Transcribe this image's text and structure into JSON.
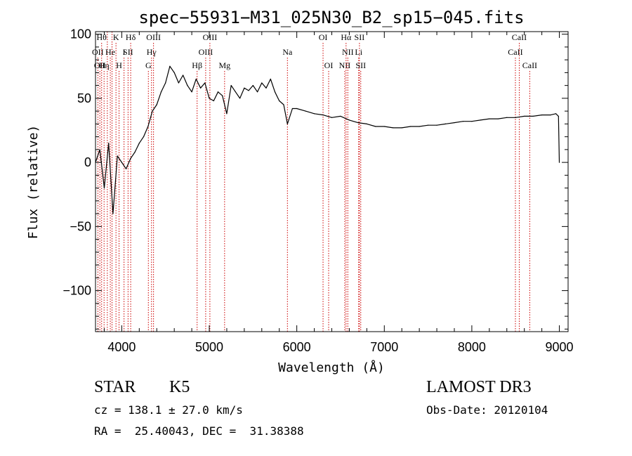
{
  "chart_data": {
    "type": "line",
    "title": "spec−55931−M31_025N30_B2_sp15−045.fits",
    "xlabel": "Wavelength (Å)",
    "ylabel": "Flux (relative)",
    "xlim": [
      3700,
      9100
    ],
    "ylim": [
      -132,
      102
    ],
    "xticks": [
      4000,
      5000,
      6000,
      7000,
      8000,
      9000
    ],
    "xtick_labels": [
      "4000",
      "5000",
      "6000",
      "7000",
      "8000",
      "9000"
    ],
    "yticks": [
      100,
      50,
      0,
      -50,
      -100
    ],
    "ytick_labels": [
      "100",
      "50",
      "0",
      "−50",
      "−100"
    ],
    "series": [
      {
        "name": "spectrum",
        "color": "#000000",
        "x": [
          3700,
          3750,
          3800,
          3850,
          3900,
          3950,
          4000,
          4050,
          4100,
          4150,
          4200,
          4250,
          4300,
          4350,
          4400,
          4450,
          4500,
          4550,
          4600,
          4650,
          4700,
          4750,
          4800,
          4850,
          4900,
          4950,
          5000,
          5050,
          5100,
          5150,
          5200,
          5250,
          5300,
          5350,
          5400,
          5450,
          5500,
          5550,
          5600,
          5650,
          5700,
          5750,
          5800,
          5850,
          5893,
          5950,
          6000,
          6100,
          6200,
          6300,
          6400,
          6500,
          6600,
          6700,
          6800,
          6900,
          7000,
          7100,
          7200,
          7300,
          7400,
          7500,
          7600,
          7700,
          7800,
          7900,
          8000,
          8100,
          8200,
          8300,
          8400,
          8500,
          8600,
          8700,
          8800,
          8900,
          8960,
          8990,
          9000
        ],
        "y": [
          0,
          10,
          -20,
          15,
          -40,
          5,
          0,
          -5,
          3,
          8,
          15,
          20,
          28,
          40,
          45,
          55,
          62,
          75,
          70,
          62,
          68,
          60,
          55,
          65,
          58,
          62,
          50,
          48,
          55,
          52,
          38,
          60,
          55,
          50,
          58,
          56,
          60,
          55,
          62,
          58,
          65,
          55,
          48,
          45,
          30,
          42,
          42,
          40,
          38,
          37,
          35,
          36,
          33,
          31,
          30,
          28,
          28,
          27,
          27,
          28,
          28,
          29,
          29,
          30,
          31,
          32,
          32,
          33,
          34,
          34,
          35,
          35,
          36,
          36,
          37,
          37,
          38,
          36,
          0
        ]
      }
    ],
    "line_markers": [
      {
        "x": 3727,
        "row": 2,
        "label": "OII"
      },
      {
        "x": 3750,
        "row": 3,
        "label": "OII"
      },
      {
        "x": 3770,
        "row": 1,
        "label": "Hθ"
      },
      {
        "x": 3798,
        "row": 3,
        "label": "Hη"
      },
      {
        "x": 3835,
        "row": 1,
        "label": ""
      },
      {
        "x": 3869,
        "row": 2,
        "label": "He"
      },
      {
        "x": 3889,
        "row": 1,
        "label": ""
      },
      {
        "x": 3934,
        "row": 1,
        "label": "K"
      },
      {
        "x": 3969,
        "row": 3,
        "label": "H"
      },
      {
        "x": 4026,
        "row": 2,
        "label": "I"
      },
      {
        "x": 4072,
        "row": 2,
        "label": "SII"
      },
      {
        "x": 4102,
        "row": 1,
        "label": "Hδ"
      },
      {
        "x": 4304,
        "row": 3,
        "label": "G"
      },
      {
        "x": 4340,
        "row": 2,
        "label": "Hγ"
      },
      {
        "x": 4363,
        "row": 1,
        "label": "OIII"
      },
      {
        "x": 4861,
        "row": 3,
        "label": "Hβ"
      },
      {
        "x": 4959,
        "row": 2,
        "label": "OIII"
      },
      {
        "x": 5007,
        "row": 1,
        "label": "OIII"
      },
      {
        "x": 5175,
        "row": 3,
        "label": "Mg"
      },
      {
        "x": 5893,
        "row": 2,
        "label": "Na"
      },
      {
        "x": 6300,
        "row": 1,
        "label": "OI"
      },
      {
        "x": 6364,
        "row": 3,
        "label": "OI"
      },
      {
        "x": 6548,
        "row": 3,
        "label": "NII"
      },
      {
        "x": 6563,
        "row": 1,
        "label": "Hα"
      },
      {
        "x": 6583,
        "row": 2,
        "label": "NII"
      },
      {
        "x": 6707,
        "row": 2,
        "label": "Li"
      },
      {
        "x": 6716,
        "row": 1,
        "label": "SII"
      },
      {
        "x": 6731,
        "row": 3,
        "label": "SII"
      },
      {
        "x": 8498,
        "row": 2,
        "label": "CaII"
      },
      {
        "x": 8542,
        "row": 1,
        "label": "CaII"
      },
      {
        "x": 8662,
        "row": 3,
        "label": "CaII"
      }
    ]
  },
  "footer": {
    "class": "STAR",
    "subclass": "K5",
    "survey": "LAMOST DR3",
    "cz": "cz = 138.1 ± 27.0 km/s",
    "obs_date": "Obs-Date: 20120104",
    "coords": "RA =  25.40043, DEC =  31.38388"
  }
}
